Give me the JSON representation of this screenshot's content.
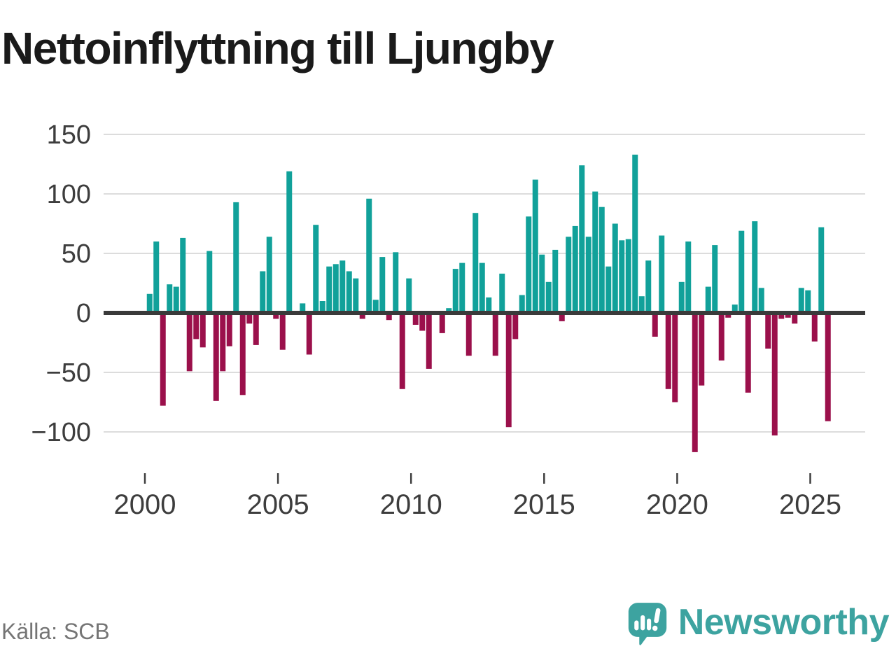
{
  "title": "Nettoinflyttning till Ljungby",
  "source": "Källa: SCB",
  "brand": {
    "name": "Newsworthy",
    "icon": "newsworthy-speech-bubble-chart-icon",
    "color": "#3da3a0"
  },
  "colors": {
    "positive_bar": "#11a19a",
    "negative_bar": "#9b104b",
    "zero_axis": "#3a3a3a",
    "gridline": "#dcdcdc",
    "tick_label": "#3d3d3d",
    "tick_mark": "#3f3f3f",
    "title_text": "#1a1a1a",
    "source_text": "#757575"
  },
  "chart_data": {
    "type": "bar",
    "title": "Nettoinflyttning till Ljungby",
    "xlabel": "",
    "ylabel": "",
    "x_unit": "quarter",
    "start_year": 2000,
    "start_quarter": 1,
    "end_period": "2025Q3",
    "values": [
      16,
      60,
      -78,
      24,
      22,
      63,
      -49,
      -22,
      -29,
      52,
      -74,
      -49,
      -28,
      93,
      -69,
      -9,
      -27,
      35,
      64,
      -5,
      -31,
      119,
      0,
      8,
      -35,
      74,
      10,
      39,
      41,
      44,
      35,
      29,
      -5,
      96,
      11,
      47,
      -6,
      51,
      -64,
      29,
      -10,
      -15,
      -47,
      0,
      -17,
      4,
      37,
      42,
      -36,
      84,
      42,
      13,
      -36,
      33,
      -96,
      -22,
      15,
      81,
      112,
      49,
      26,
      53,
      -7,
      64,
      73,
      124,
      64,
      102,
      89,
      39,
      75,
      61,
      62,
      133,
      14,
      44,
      -20,
      65,
      -64,
      -75,
      26,
      60,
      -117,
      -61,
      22,
      57,
      -40,
      -4,
      7,
      69,
      -67,
      77,
      21,
      -30,
      -103,
      -5,
      -4,
      -9,
      21,
      19,
      -24,
      72,
      -91
    ],
    "yticks": [
      150,
      100,
      50,
      0,
      -50,
      -100
    ],
    "xticks": [
      2000,
      2005,
      2010,
      2015,
      2020,
      2025
    ],
    "ylim": [
      -130,
      155
    ],
    "grid": true,
    "legend": "none",
    "positive_color": "#11a19a",
    "negative_color": "#9b104b"
  }
}
